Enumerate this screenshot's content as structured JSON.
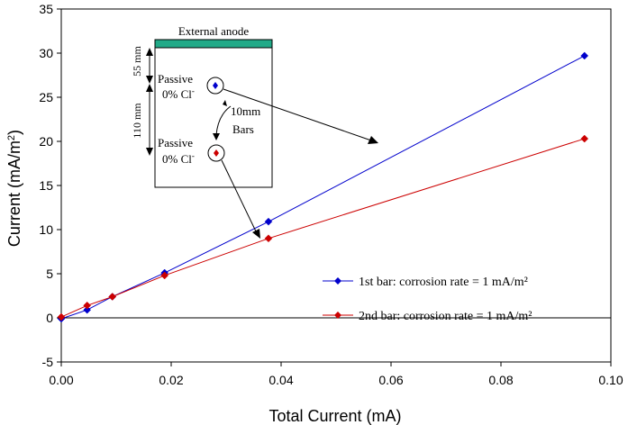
{
  "chart_data": {
    "type": "line",
    "title": "",
    "xlabel": "Total Current (mA)",
    "ylabel": "Current (mA/m",
    "ylabel_sup": "2",
    "ylabel_close": ")",
    "xlim": [
      0,
      0.1
    ],
    "ylim": [
      -5,
      35
    ],
    "x_ticks": [
      0,
      0.02,
      0.04,
      0.06,
      0.08,
      0.1
    ],
    "x_tick_labels": [
      "0.00",
      "0.02",
      "0.04",
      "0.06",
      "0.08",
      "0.10"
    ],
    "y_ticks": [
      -5,
      0,
      5,
      10,
      15,
      20,
      25,
      30,
      35
    ],
    "y_tick_labels": [
      "-5",
      "0",
      "5",
      "10",
      "15",
      "20",
      "25",
      "30",
      "35"
    ],
    "grid": false,
    "legend_position": "bottom-right",
    "series": [
      {
        "name": "1st bar: corrosion rate = 1 mA/m²",
        "color": "#0000cc",
        "marker": "diamond",
        "points": [
          [
            0.0,
            -0.1
          ],
          [
            0.0047,
            0.9
          ],
          [
            0.0093,
            2.4
          ],
          [
            0.0188,
            5.1
          ],
          [
            0.0377,
            10.9
          ],
          [
            0.0952,
            29.7
          ]
        ]
      },
      {
        "name": "2nd bar: corrosion rate = 1 mA/m²",
        "color": "#cc0000",
        "marker": "diamond",
        "points": [
          [
            0.0,
            0.1
          ],
          [
            0.0047,
            1.4
          ],
          [
            0.0093,
            2.4
          ],
          [
            0.0188,
            4.8
          ],
          [
            0.0377,
            9.0
          ],
          [
            0.0952,
            20.3
          ]
        ]
      }
    ],
    "inset": {
      "anode_label": "External anode",
      "anode_color": "#22aa88",
      "passive_label": "Passive",
      "chloride_label": "0% Cl",
      "chloride_sup": "-",
      "dim_top": "55 mm",
      "dim_side": "110 mm",
      "spacing_label_1": "10mm",
      "spacing_label_2": "Bars"
    }
  }
}
